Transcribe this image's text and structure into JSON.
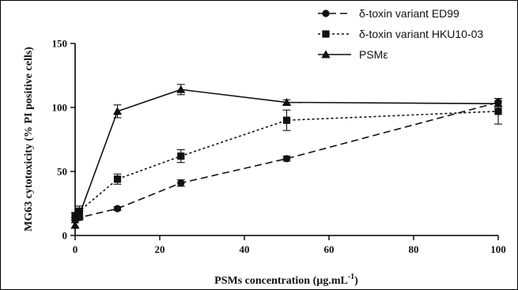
{
  "chart_data": {
    "type": "line",
    "xlabel": "PSMs concentration (µg.mL",
    "xlabel_sup": "-1",
    "xlabel_close": ")",
    "ylabel": "MG63 cytotoxicity (% PI positive cells)",
    "xlim": [
      0,
      100
    ],
    "ylim": [
      0,
      150
    ],
    "x_ticks": [
      0,
      20,
      40,
      60,
      80,
      100
    ],
    "y_ticks": [
      0,
      50,
      100,
      150
    ],
    "legend_position": "top-right",
    "series": [
      {
        "name": "δ-toxin variant ED99",
        "marker": "circle",
        "dash": "dashed",
        "x": [
          0,
          1,
          10,
          25,
          50,
          100
        ],
        "y": [
          12,
          14,
          21,
          41,
          60,
          104
        ],
        "err": [
          2,
          2,
          1.5,
          2.5,
          2,
          3
        ]
      },
      {
        "name": "δ-toxin variant HKU10-03",
        "marker": "square",
        "dash": "dotted",
        "x": [
          0,
          1,
          10,
          25,
          50,
          100
        ],
        "y": [
          15,
          19,
          44,
          62,
          90,
          97
        ],
        "err": [
          3,
          4,
          4,
          5,
          8,
          10
        ]
      },
      {
        "name": "PSMε",
        "marker": "triangle",
        "dash": "solid",
        "x": [
          0,
          1,
          10,
          25,
          50,
          100
        ],
        "y": [
          8,
          16,
          97,
          114,
          104,
          103
        ],
        "err": [
          2,
          3,
          5,
          4,
          2,
          2
        ]
      }
    ]
  }
}
